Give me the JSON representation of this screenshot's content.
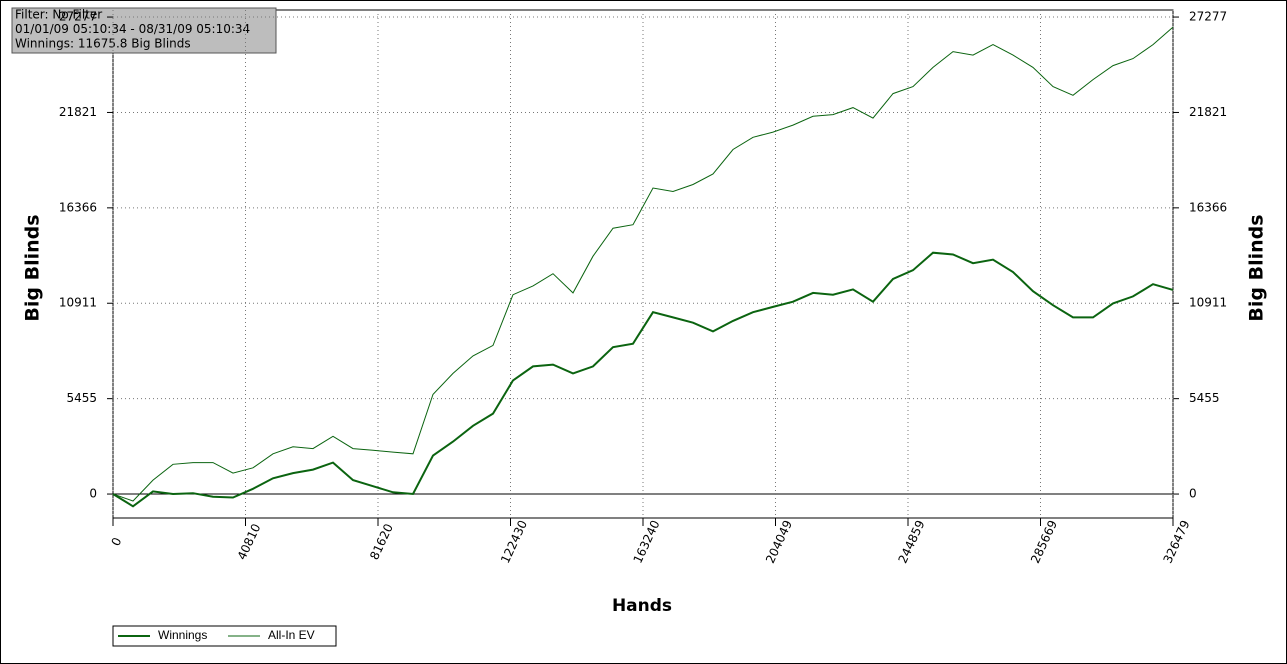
{
  "chart_data": {
    "type": "line",
    "annotations": [
      "Filter: No Filter",
      "01/01/09 05:10:34 - 08/31/09 05:10:34",
      "Winnings: 11675.8 Big Blinds"
    ],
    "xlabel": "Hands",
    "ylabel": "Big Blinds",
    "x": [
      0,
      6160,
      12320,
      18480,
      24640,
      30800,
      36960,
      43120,
      49280,
      55440,
      61600,
      67760,
      73920,
      80080,
      86240,
      92400,
      98560,
      104720,
      110880,
      117040,
      123200,
      129360,
      135520,
      141680,
      147840,
      154000,
      160160,
      166320,
      172480,
      178640,
      184800,
      190960,
      197120,
      203280,
      209440,
      215600,
      221760,
      227920,
      234080,
      240240,
      246400,
      252560,
      258720,
      264880,
      271040,
      277200,
      283360,
      289520,
      295680,
      301840,
      308000,
      314160,
      320320,
      326479
    ],
    "series": [
      {
        "name": "Winnings",
        "color": "#0b6410",
        "width": 2,
        "values": [
          0,
          -700,
          150,
          0,
          50,
          -150,
          -200,
          300,
          900,
          1200,
          1400,
          1800,
          800,
          450,
          100,
          0,
          2200,
          3000,
          3900,
          4600,
          6500,
          7300,
          7400,
          6900,
          7300,
          8400,
          8600,
          10400,
          10100,
          9800,
          9300,
          9900,
          10400,
          10700,
          11000,
          11500,
          11400,
          11700,
          11000,
          12300,
          12800,
          13800,
          13700,
          13200,
          13400,
          12700,
          11600,
          10800,
          10100,
          10100,
          10900,
          11300,
          12000,
          11676
        ]
      },
      {
        "name": "All-In EV",
        "color": "#0b6410",
        "width": 1,
        "values": [
          0,
          -400,
          800,
          1700,
          1800,
          1800,
          1200,
          1500,
          2300,
          2700,
          2600,
          3300,
          2600,
          2500,
          2400,
          2300,
          5700,
          6900,
          7900,
          8500,
          11400,
          11900,
          12600,
          11500,
          13600,
          15200,
          15400,
          17500,
          17300,
          17700,
          18300,
          19700,
          20400,
          20700,
          21100,
          21600,
          21700,
          22100,
          21500,
          22900,
          23300,
          24400,
          25300,
          25100,
          25700,
          25100,
          24400,
          23300,
          22800,
          23700,
          24500,
          24900,
          25700,
          26700
        ]
      }
    ],
    "xlim": [
      0,
      326479
    ],
    "xticks": [
      0,
      40810,
      81620,
      122430,
      163240,
      204049,
      244859,
      285669,
      326479
    ],
    "ylim": [
      -1370,
      27680
    ],
    "yticks": [
      0,
      5455,
      10911,
      16366,
      21821,
      27277
    ],
    "grid": true,
    "legend": "bottom-left"
  }
}
